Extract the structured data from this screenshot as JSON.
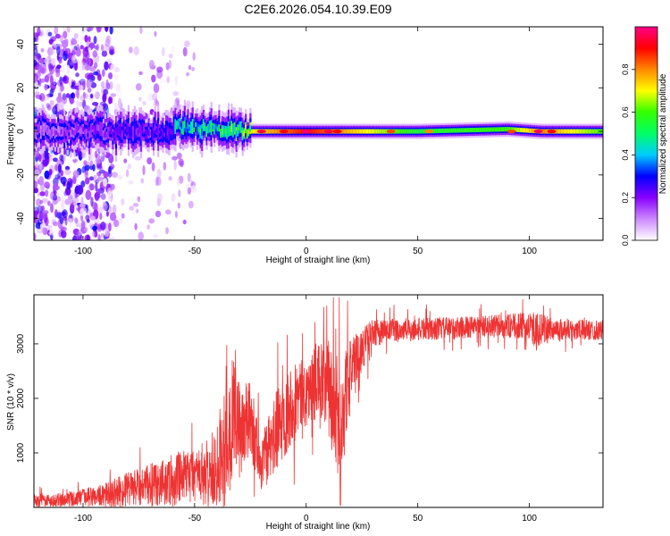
{
  "title": "C2E6.2026.054.10.39.E09",
  "chart_data": [
    {
      "type": "heatmap",
      "xlabel": "Height of straight line (km)",
      "ylabel": "Frequency (Hz)",
      "xlim": [
        -122,
        133
      ],
      "ylim": [
        -50,
        48
      ],
      "x_ticks": [
        -100,
        -50,
        0,
        50,
        100
      ],
      "x_tick_labels": [
        "-100",
        "-50",
        "0",
        "50",
        "100"
      ],
      "y_ticks": [
        -40,
        -20,
        0,
        20,
        40
      ],
      "y_tick_labels": [
        "-40",
        "-20",
        "0",
        "20",
        "40"
      ],
      "colorbar": {
        "label": "Normalized spectral amplitude",
        "range": [
          0,
          1
        ],
        "ticks": [
          0.0,
          0.2,
          0.4,
          0.6,
          0.8
        ],
        "tick_labels": [
          "0.0",
          "0.2",
          "0.4",
          "0.6",
          "0.8"
        ],
        "colors": [
          "#ffffff",
          "#cc88ff",
          "#8800ff",
          "#0000ff",
          "#00ccff",
          "#00ff66",
          "#33ff00",
          "#ffff00",
          "#ff8800",
          "#ff0000",
          "#ff0088"
        ]
      },
      "ridge": {
        "description_points": [
          [
            -122,
            0,
            0.15
          ],
          [
            -60,
            0,
            0.3
          ],
          [
            -58,
            2,
            0.55
          ],
          [
            -40,
            1,
            0.55
          ],
          [
            -25,
            0,
            0.7
          ],
          [
            0,
            0,
            0.9
          ],
          [
            20,
            0,
            0.75
          ],
          [
            50,
            0,
            0.55
          ],
          [
            90,
            1,
            0.6
          ],
          [
            105,
            0,
            0.8
          ],
          [
            133,
            0,
            0.6
          ]
        ]
      },
      "scatter_region": {
        "x_range": [
          -122,
          -50
        ],
        "y_range": [
          -50,
          48
        ],
        "dense_x_range": [
          -122,
          -87
        ]
      }
    },
    {
      "type": "line",
      "xlabel": "Height of straight line (km)",
      "ylabel": "SNR (10 * v/v)",
      "xlim": [
        -122,
        133
      ],
      "ylim": [
        0,
        3900
      ],
      "x_ticks": [
        -100,
        -50,
        0,
        50,
        100
      ],
      "x_tick_labels": [
        "-100",
        "-50",
        "0",
        "50",
        "100"
      ],
      "y_ticks": [
        1000,
        2000,
        3000
      ],
      "y_tick_labels": [
        "1000",
        "2000",
        "3000"
      ],
      "series": [
        {
          "name": "SNR",
          "color": "#ee3333",
          "envelope": {
            "x": [
              -122,
              -110,
              -100,
              -90,
              -80,
              -70,
              -60,
              -50,
              -45,
              -40,
              -35,
              -32,
              -30,
              -25,
              -20,
              -15,
              -10,
              -5,
              0,
              5,
              10,
              15,
              20,
              25,
              30,
              40,
              60,
              80,
              95,
              103,
              110,
              133
            ],
            "base": [
              120,
              140,
              180,
              230,
              320,
              420,
              480,
              620,
              500,
              850,
              1200,
              1900,
              1400,
              1600,
              800,
              1200,
              1700,
              2000,
              2100,
              2300,
              2200,
              1400,
              2600,
              2900,
              3200,
              3250,
              3280,
              3320,
              3330,
              3260,
              3270,
              3250
            ],
            "amp": [
              120,
              120,
              160,
              220,
              320,
              380,
              450,
              520,
              500,
              800,
              1100,
              1100,
              900,
              700,
              500,
              700,
              800,
              700,
              600,
              700,
              900,
              1300,
              500,
              400,
              250,
              220,
              200,
              200,
              230,
              320,
              200,
              180
            ]
          }
        }
      ]
    }
  ]
}
